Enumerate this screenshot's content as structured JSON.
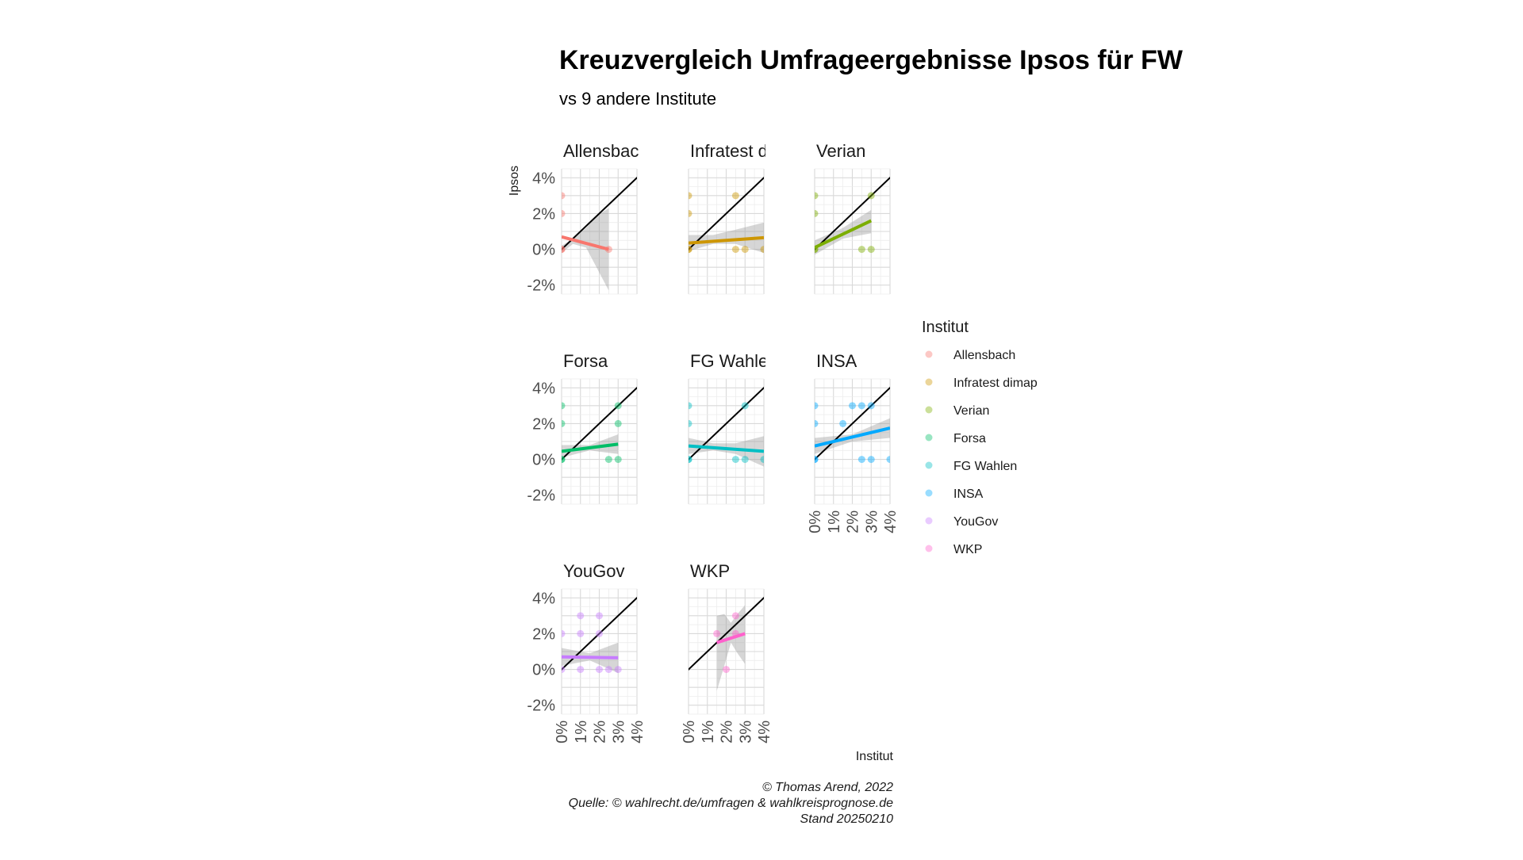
{
  "title": "Kreuzvergleich Umfrageergebnisse Ipsos für FW",
  "subtitle": "vs 9 andere Institute",
  "caption_lines": [
    "© Thomas Arend, 2022",
    "Quelle: © wahlrecht.de/umfragen & wahlkreisprognose.de",
    "Stand 20250210"
  ],
  "chart_data": {
    "type": "scatter",
    "xlabel": "Institut",
    "ylabel": "Ipsos",
    "xlim": [
      0,
      4
    ],
    "ylim": [
      -2.5,
      4.5
    ],
    "x_ticks": [
      "0%",
      "1%",
      "2%",
      "3%",
      "4%"
    ],
    "y_ticks": [
      "-2%",
      "0%",
      "2%",
      "4%"
    ],
    "reference_line": "y = x",
    "legend_title": "Institut",
    "legend_position": "right",
    "panels": [
      {
        "name": "Allensbach",
        "strip": "Allensbach",
        "color": "#F8766D",
        "points": [
          [
            0,
            3
          ],
          [
            0,
            2
          ],
          [
            0,
            0
          ],
          [
            0,
            0
          ],
          [
            2.5,
            0
          ]
        ],
        "fit": {
          "x": [
            0,
            2.5
          ],
          "y": [
            0.7,
            0
          ]
        },
        "band": {
          "x": [
            0,
            0.6,
            1.3,
            1.9,
            2.5
          ],
          "upper": [
            0.2,
            0.6,
            1.2,
            1.9,
            2.3
          ],
          "lower": [
            -0.2,
            0.3,
            0.1,
            -1.1,
            -2.3
          ]
        }
      },
      {
        "name": "Infratest dimap",
        "strip": "Infratest di",
        "color": "#CD9600",
        "points": [
          [
            0,
            3
          ],
          [
            0,
            2
          ],
          [
            0,
            0
          ],
          [
            0,
            0
          ],
          [
            2.5,
            3
          ],
          [
            2.5,
            0
          ],
          [
            3,
            0
          ],
          [
            4,
            0
          ]
        ],
        "fit": {
          "x": [
            0,
            4
          ],
          "y": [
            0.35,
            0.65
          ]
        },
        "band": {
          "x": [
            0,
            1.3,
            2.5,
            4
          ],
          "upper": [
            0.8,
            0.8,
            1.1,
            1.5
          ],
          "lower": [
            -0.1,
            0.3,
            0.3,
            -0.2
          ]
        }
      },
      {
        "name": "Verian",
        "strip": "Verian",
        "color": "#7CAE00",
        "points": [
          [
            0,
            3
          ],
          [
            0,
            2
          ],
          [
            0,
            0
          ],
          [
            0,
            0
          ],
          [
            3,
            3
          ],
          [
            2.5,
            0
          ],
          [
            3,
            0
          ]
        ],
        "fit": {
          "x": [
            0,
            3
          ],
          "y": [
            0.1,
            1.6
          ]
        },
        "band": {
          "x": [
            0,
            1.5,
            3
          ],
          "upper": [
            0.5,
            1.2,
            2.2
          ],
          "lower": [
            -0.3,
            0.6,
            0.9
          ]
        }
      },
      {
        "name": "Forsa",
        "strip": "Forsa",
        "color": "#00BE67",
        "points": [
          [
            0,
            3
          ],
          [
            0,
            2
          ],
          [
            0,
            0
          ],
          [
            0,
            0
          ],
          [
            3,
            3
          ],
          [
            3,
            2
          ],
          [
            3,
            0
          ],
          [
            2.5,
            0
          ]
        ],
        "fit": {
          "x": [
            0,
            3
          ],
          "y": [
            0.45,
            0.85
          ]
        },
        "band": {
          "x": [
            0,
            1.5,
            3
          ],
          "upper": [
            0.8,
            0.8,
            1.4
          ],
          "lower": [
            0.1,
            0.5,
            0.3
          ]
        }
      },
      {
        "name": "FG Wahlen",
        "strip": "FG Wahlen",
        "color": "#00BFC4",
        "points": [
          [
            0,
            3
          ],
          [
            0,
            2
          ],
          [
            0,
            0
          ],
          [
            0,
            0
          ],
          [
            3,
            3
          ],
          [
            3,
            0
          ],
          [
            2.5,
            0
          ],
          [
            4,
            0
          ]
        ],
        "fit": {
          "x": [
            0,
            4
          ],
          "y": [
            0.75,
            0.45
          ]
        },
        "band": {
          "x": [
            0,
            1.3,
            2.5,
            4
          ],
          "upper": [
            1.2,
            0.9,
            0.9,
            1.3
          ],
          "lower": [
            0.3,
            0.5,
            0.3,
            -0.4
          ]
        }
      },
      {
        "name": "INSA",
        "strip": "INSA",
        "color": "#00A9FF",
        "points": [
          [
            0,
            3
          ],
          [
            0,
            2
          ],
          [
            0,
            0
          ],
          [
            0,
            0
          ],
          [
            2,
            3
          ],
          [
            2.5,
            3
          ],
          [
            3,
            3
          ],
          [
            1.5,
            2
          ],
          [
            2.5,
            0
          ],
          [
            3,
            0
          ],
          [
            4,
            0
          ]
        ],
        "fit": {
          "x": [
            0,
            4
          ],
          "y": [
            0.75,
            1.75
          ]
        },
        "band": {
          "x": [
            0,
            2,
            4
          ],
          "upper": [
            1.2,
            1.4,
            2.3
          ],
          "lower": [
            0.3,
            1.0,
            1.2
          ]
        }
      },
      {
        "name": "YouGov",
        "strip": "YouGov",
        "color": "#C77CFF",
        "points": [
          [
            0,
            2
          ],
          [
            0,
            0
          ],
          [
            1,
            3
          ],
          [
            1,
            2
          ],
          [
            1,
            0
          ],
          [
            2,
            3
          ],
          [
            2,
            2
          ],
          [
            2,
            0
          ],
          [
            2.5,
            0
          ],
          [
            3,
            0
          ]
        ],
        "fit": {
          "x": [
            0,
            3
          ],
          "y": [
            0.7,
            0.65
          ]
        },
        "band": {
          "x": [
            0,
            1.5,
            3
          ],
          "upper": [
            1.2,
            0.9,
            1.5
          ],
          "lower": [
            0.2,
            0.5,
            -0.2
          ]
        }
      },
      {
        "name": "WKP",
        "strip": "WKP",
        "color": "#FF61CC",
        "points": [
          [
            1.5,
            2
          ],
          [
            2.5,
            3
          ],
          [
            2.5,
            2
          ],
          [
            2,
            0
          ]
        ],
        "fit": {
          "x": [
            1.5,
            3
          ],
          "y": [
            1.5,
            2.0
          ]
        },
        "band": {
          "x": [
            1.5,
            1.9,
            2.25,
            2.6,
            3
          ],
          "upper": [
            3.0,
            3.1,
            2.6,
            3.1,
            3.6
          ],
          "lower": [
            -1.2,
            0.2,
            1.5,
            0.9,
            0.3
          ]
        }
      }
    ]
  }
}
